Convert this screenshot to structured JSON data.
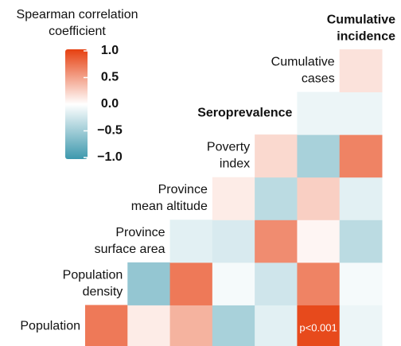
{
  "chart_data": {
    "type": "heatmap",
    "colorbar_title": [
      "Spearman correlation",
      "coefficient"
    ],
    "variables": [
      {
        "lines": [
          "Population"
        ],
        "bold": false
      },
      {
        "lines": [
          "Population",
          "density"
        ],
        "bold": false
      },
      {
        "lines": [
          "Province",
          "surface area"
        ],
        "bold": false
      },
      {
        "lines": [
          "Province",
          "mean altitude"
        ],
        "bold": false
      },
      {
        "lines": [
          "Poverty",
          "index"
        ],
        "bold": false
      },
      {
        "lines": [
          "Seroprevalence"
        ],
        "bold": true
      },
      {
        "lines": [
          "Cumulative",
          "cases"
        ],
        "bold": false
      },
      {
        "lines": [
          "Cumulative",
          "incidence"
        ],
        "bold": true
      }
    ],
    "values": [
      [
        0.7,
        0.1,
        0.4,
        -0.45,
        -0.15,
        0.95,
        -0.1
      ],
      [
        null,
        -0.55,
        0.7,
        -0.05,
        -0.25,
        0.65,
        -0.05
      ],
      [
        null,
        null,
        -0.15,
        -0.2,
        0.6,
        0.05,
        -0.35
      ],
      [
        null,
        null,
        null,
        0.1,
        -0.35,
        0.25,
        -0.15
      ],
      [
        null,
        null,
        null,
        null,
        0.2,
        -0.45,
        0.65
      ],
      [
        null,
        null,
        null,
        null,
        null,
        -0.1,
        -0.1
      ],
      [
        null,
        null,
        null,
        null,
        null,
        null,
        0.15
      ]
    ],
    "annotations": [
      {
        "row": 0,
        "col": 5,
        "text": "p<0.001"
      }
    ],
    "colors": [
      "#3d98ad",
      "#ffffff",
      "#e64010"
    ],
    "zlim": [
      -1,
      1
    ],
    "zticks": [
      {
        "value": 1,
        "label": "1.0"
      },
      0.5,
      {
        "value": 0,
        "label": "0.0"
      },
      {
        "value": -0.5,
        "label": "−0.5"
      },
      {
        "value": -1,
        "label": "−1.0"
      }
    ]
  }
}
